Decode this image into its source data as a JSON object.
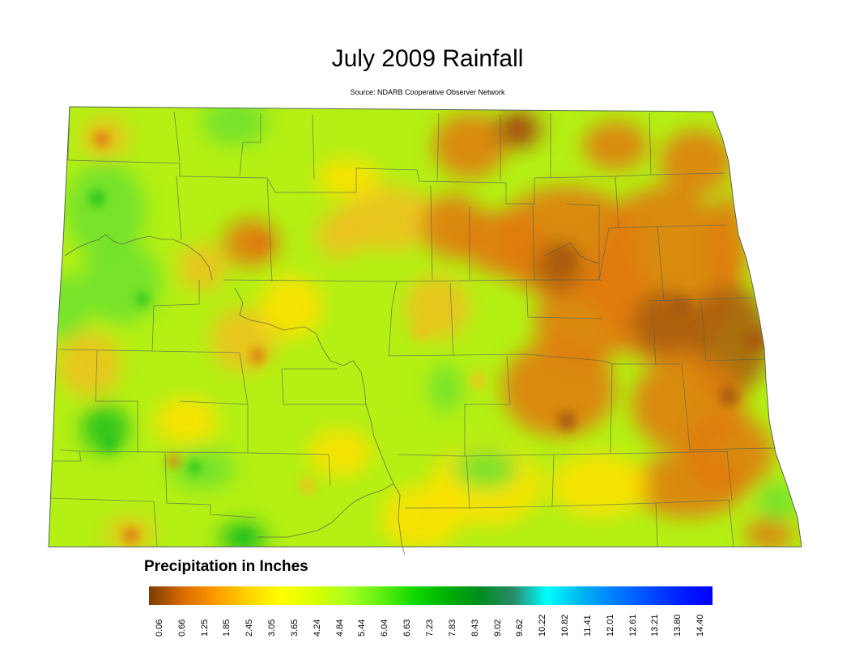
{
  "title": "July 2009 Rainfall",
  "subtitle": "Source: NDARB Cooperative Observer Network",
  "legend": {
    "title": "Precipitation in Inches",
    "ticks": [
      "0.06",
      "0.66",
      "1.25",
      "1.85",
      "2.45",
      "3.05",
      "3.65",
      "4.24",
      "4.84",
      "5.44",
      "6.04",
      "6.63",
      "7.23",
      "7.83",
      "8.43",
      "9.02",
      "9.62",
      "10.22",
      "10.82",
      "11.41",
      "12.01",
      "12.61",
      "13.21",
      "13.80",
      "14.40"
    ],
    "colors": [
      "#7a3c00",
      "#d86a00",
      "#ff9a00",
      "#ffd400",
      "#ffff00",
      "#d8ff00",
      "#a8ff20",
      "#60f010",
      "#10d800",
      "#00b000",
      "#008c20",
      "#2a8a6a",
      "#00ffff",
      "#00b8f0",
      "#0080ff",
      "#0050ff",
      "#0020ff",
      "#0000ff"
    ]
  },
  "map_colors": {
    "background": "#b4f014",
    "dry": "#e07a10",
    "very_dry": "#a85a10",
    "moderate": "#f0c020",
    "mid": "#ffe000",
    "wet": "#6ce030",
    "very_wet": "#22c020"
  }
}
